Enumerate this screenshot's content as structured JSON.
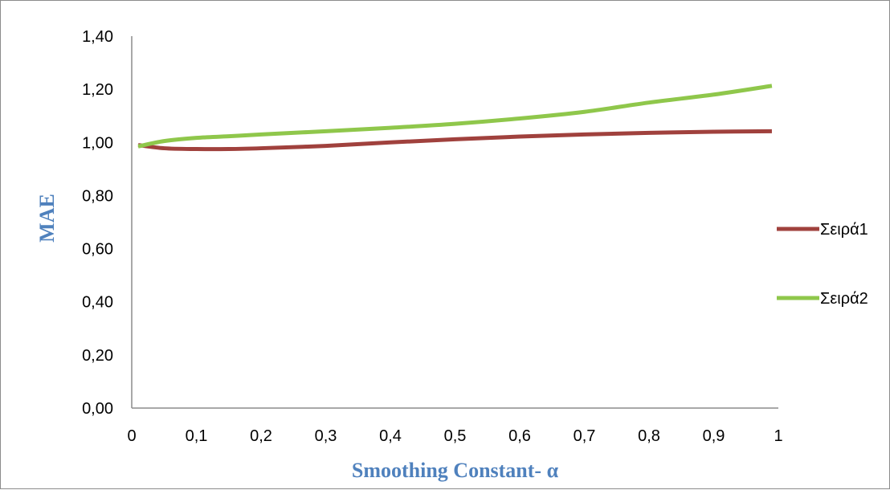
{
  "chart_data": {
    "type": "line",
    "title": "",
    "xlabel": "Smoothing Constant- α",
    "ylabel": "MAE",
    "x_ticks": [
      "0",
      "0,1",
      "0,2",
      "0,3",
      "0,4",
      "0,5",
      "0,6",
      "0,7",
      "0,8",
      "0,9",
      "1"
    ],
    "y_ticks": [
      "0,00",
      "0,20",
      "0,40",
      "0,60",
      "0,80",
      "1,00",
      "1,20",
      "1,40"
    ],
    "xlim": [
      0,
      1
    ],
    "ylim": [
      0,
      1.4
    ],
    "grid": false,
    "legend_position": "right",
    "x": [
      0.01,
      0.05,
      0.1,
      0.15,
      0.2,
      0.3,
      0.4,
      0.5,
      0.6,
      0.7,
      0.8,
      0.9,
      0.99
    ],
    "series": [
      {
        "name": "Σειρά1",
        "color": "#a0413d",
        "values": [
          0.99,
          0.978,
          0.975,
          0.975,
          0.978,
          0.987,
          1.0,
          1.012,
          1.022,
          1.03,
          1.036,
          1.04,
          1.042
        ]
      },
      {
        "name": "Σειρά2",
        "color": "#8fc74b",
        "values": [
          0.985,
          1.005,
          1.017,
          1.023,
          1.03,
          1.042,
          1.055,
          1.07,
          1.09,
          1.115,
          1.15,
          1.18,
          1.213
        ]
      }
    ]
  }
}
